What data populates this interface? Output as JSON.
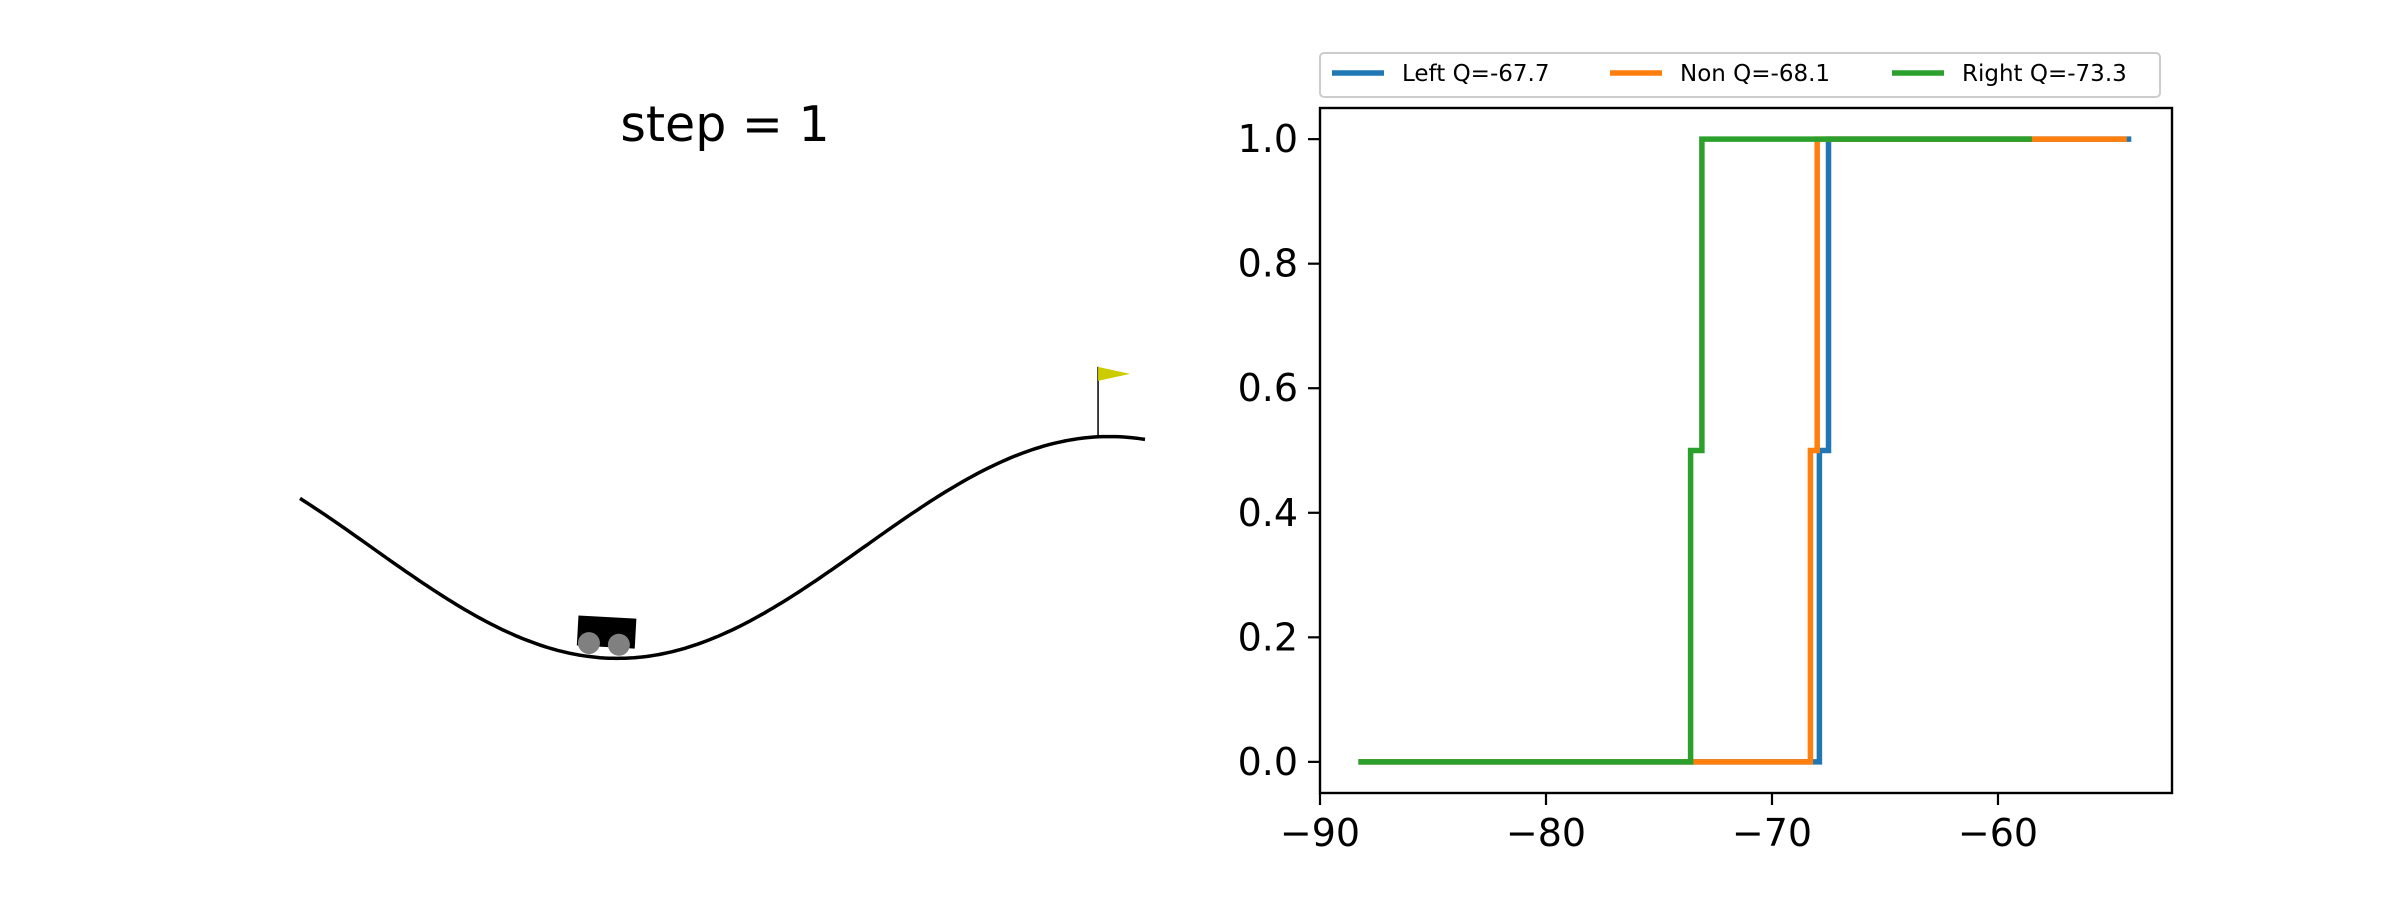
{
  "left_panel": {
    "title": "step = 1",
    "car_position": -0.55,
    "goal_position": 0.5,
    "car_color": "#000000",
    "wheel_color": "#808080",
    "flag_color": "#cccc00",
    "track_color": "#000000"
  },
  "chart_data": {
    "type": "line",
    "step_style": "post",
    "xlim": [
      -90,
      -52.3
    ],
    "ylim": [
      -0.05,
      1.05
    ],
    "x_ticks": [
      -90,
      -80,
      -70,
      -60
    ],
    "x_tick_labels": [
      "−90",
      "−80",
      "−70",
      "−60"
    ],
    "y_ticks": [
      0.0,
      0.2,
      0.4,
      0.6,
      0.8,
      1.0
    ],
    "y_tick_labels": [
      "0.0",
      "0.2",
      "0.4",
      "0.6",
      "0.8",
      "1.0"
    ],
    "grid": false,
    "legend_position": "top, above plot, 3 columns",
    "series": [
      {
        "name": "Left Q=-67.7",
        "color": "#1f77b4",
        "points": [
          [
            -88.3,
            0.0
          ],
          [
            -67.9,
            0.0
          ],
          [
            -67.9,
            0.5
          ],
          [
            -67.5,
            0.5
          ],
          [
            -67.5,
            1.0
          ],
          [
            -54.1,
            1.0
          ]
        ]
      },
      {
        "name": "Non Q=-68.1",
        "color": "#ff7f0e",
        "points": [
          [
            -88.3,
            0.0
          ],
          [
            -68.3,
            0.0
          ],
          [
            -68.3,
            0.5
          ],
          [
            -68.0,
            0.5
          ],
          [
            -68.0,
            1.0
          ],
          [
            -54.3,
            1.0
          ]
        ]
      },
      {
        "name": "Right Q=-73.3",
        "color": "#2ca02c",
        "points": [
          [
            -88.3,
            0.0
          ],
          [
            -73.6,
            0.0
          ],
          [
            -73.6,
            0.5
          ],
          [
            -73.1,
            0.5
          ],
          [
            -73.1,
            1.0
          ],
          [
            -58.5,
            1.0
          ]
        ]
      }
    ]
  }
}
